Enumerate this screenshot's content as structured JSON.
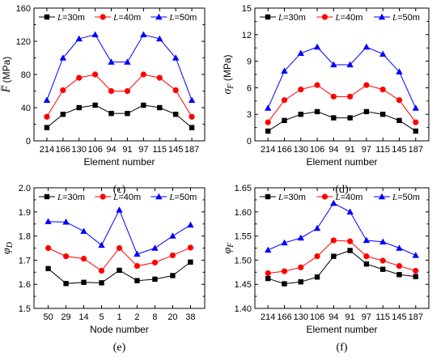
{
  "chart_data": [
    {
      "type": "line",
      "panel_label": "(c)",
      "xlabel": "Element number",
      "ylabel": {
        "main": "F̅",
        "sub": "",
        "unit": " (MPa)"
      },
      "categories": [
        "214",
        "166",
        "130",
        "106",
        "94",
        "91",
        "97",
        "115",
        "145",
        "187"
      ],
      "ylim": [
        0,
        160
      ],
      "yticks": [
        0,
        40,
        80,
        120,
        160
      ],
      "ytick_labels": [
        "0",
        "40",
        "80",
        "120",
        "160"
      ],
      "legend": "top",
      "series": [
        {
          "name": "L=30m",
          "var": "L",
          "rest": "=30m",
          "color": "#000000",
          "marker": "square",
          "values": [
            16,
            32,
            40,
            43,
            33,
            33,
            43,
            40,
            32,
            16
          ]
        },
        {
          "name": "L=40m",
          "var": "L",
          "rest": "=40m",
          "color": "#ff0000",
          "marker": "circle",
          "values": [
            29,
            61,
            76,
            80,
            60,
            60,
            80,
            76,
            61,
            29
          ]
        },
        {
          "name": "L=50m",
          "var": "L",
          "rest": "=50m",
          "color": "#0000ff",
          "marker": "triangle",
          "values": [
            49,
            100,
            123,
            128,
            95,
            95,
            128,
            123,
            100,
            49
          ]
        }
      ]
    },
    {
      "type": "line",
      "panel_label": "(d)",
      "xlabel": "Element number",
      "ylabel": {
        "main": "σ",
        "sub": "F",
        "unit": " (MPa)"
      },
      "categories": [
        "214",
        "166",
        "130",
        "106",
        "94",
        "91",
        "97",
        "115",
        "145",
        "187"
      ],
      "ylim": [
        0,
        15
      ],
      "yticks": [
        0,
        3,
        6,
        9,
        12,
        15
      ],
      "ytick_labels": [
        "0",
        "3",
        "6",
        "9",
        "12",
        "15"
      ],
      "legend": "top",
      "series": [
        {
          "name": "L=30m",
          "var": "L",
          "rest": "=30m",
          "color": "#000000",
          "marker": "square",
          "values": [
            1.1,
            2.3,
            3.0,
            3.3,
            2.6,
            2.6,
            3.3,
            3.0,
            2.3,
            1.1
          ]
        },
        {
          "name": "L=40m",
          "var": "L",
          "rest": "=40m",
          "color": "#ff0000",
          "marker": "circle",
          "values": [
            2.1,
            4.6,
            5.8,
            6.3,
            5.0,
            5.0,
            6.3,
            5.8,
            4.6,
            2.1
          ]
        },
        {
          "name": "L=50m",
          "var": "L",
          "rest": "=50m",
          "color": "#0000ff",
          "marker": "triangle",
          "values": [
            3.7,
            7.9,
            9.9,
            10.6,
            8.6,
            8.6,
            10.6,
            9.8,
            7.8,
            3.7
          ]
        }
      ]
    },
    {
      "type": "line",
      "panel_label": "(e)",
      "xlabel": "Node number",
      "ylabel": {
        "main": "φ",
        "sub": "D",
        "unit": ""
      },
      "categories": [
        "50",
        "29",
        "14",
        "5",
        "1",
        "2",
        "8",
        "20",
        "38"
      ],
      "ylim": [
        1.5,
        2.0
      ],
      "yticks": [
        1.5,
        1.6,
        1.7,
        1.8,
        1.9,
        2.0
      ],
      "ytick_labels": [
        "1.5",
        "1.6",
        "1.7",
        "1.8",
        "1.9",
        "2.0"
      ],
      "legend": "top",
      "series": [
        {
          "name": "L=30m",
          "var": "L",
          "rest": "=30m",
          "color": "#000000",
          "marker": "square",
          "values": [
            1.665,
            1.603,
            1.608,
            1.606,
            1.658,
            1.615,
            1.621,
            1.636,
            1.692
          ]
        },
        {
          "name": "L=40m",
          "var": "L",
          "rest": "=40m",
          "color": "#ff0000",
          "marker": "circle",
          "values": [
            1.75,
            1.716,
            1.706,
            1.656,
            1.75,
            1.676,
            1.69,
            1.72,
            1.752
          ]
        },
        {
          "name": "L=50m",
          "var": "L",
          "rest": "=50m",
          "color": "#0000ff",
          "marker": "triangle",
          "values": [
            1.86,
            1.858,
            1.82,
            1.762,
            1.908,
            1.725,
            1.75,
            1.8,
            1.846
          ]
        }
      ]
    },
    {
      "type": "line",
      "panel_label": "(f)",
      "xlabel": "Element number",
      "ylabel": {
        "main": "φ",
        "sub": "F",
        "unit": ""
      },
      "categories": [
        "214",
        "166",
        "130",
        "106",
        "94",
        "91",
        "97",
        "115",
        "145",
        "187"
      ],
      "ylim": [
        1.4,
        1.65
      ],
      "yticks": [
        1.4,
        1.45,
        1.5,
        1.55,
        1.6,
        1.65
      ],
      "ytick_labels": [
        "1.40",
        "1.45",
        "1.50",
        "1.55",
        "1.60",
        "1.65"
      ],
      "legend": "top",
      "series": [
        {
          "name": "L=30m",
          "var": "L",
          "rest": "=30m",
          "color": "#000000",
          "marker": "square",
          "values": [
            1.462,
            1.451,
            1.455,
            1.465,
            1.508,
            1.52,
            1.492,
            1.481,
            1.47,
            1.466
          ]
        },
        {
          "name": "L=40m",
          "var": "L",
          "rest": "=40m",
          "color": "#ff0000",
          "marker": "circle",
          "values": [
            1.473,
            1.477,
            1.485,
            1.508,
            1.541,
            1.539,
            1.508,
            1.499,
            1.488,
            1.478
          ]
        },
        {
          "name": "L=50m",
          "var": "L",
          "rest": "=50m",
          "color": "#0000ff",
          "marker": "triangle",
          "values": [
            1.521,
            1.536,
            1.546,
            1.566,
            1.618,
            1.6,
            1.541,
            1.538,
            1.525,
            1.51
          ]
        }
      ]
    }
  ]
}
